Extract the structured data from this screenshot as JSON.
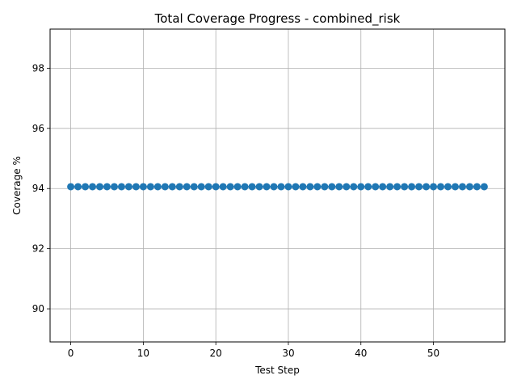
{
  "chart_data": {
    "type": "line",
    "title": "Total Coverage Progress - combined_risk",
    "xlabel": "Test Step",
    "ylabel": "Coverage %",
    "xlim": [
      -2.85,
      59.85
    ],
    "ylim": [
      88.9,
      99.3
    ],
    "xticks": [
      0,
      10,
      20,
      30,
      40,
      50
    ],
    "yticks": [
      90,
      92,
      94,
      96,
      98
    ],
    "grid": true,
    "marker": "circle",
    "color": "#1f77b4",
    "series": [
      {
        "x": [
          0,
          1,
          2,
          3,
          4,
          5,
          6,
          7,
          8,
          9,
          10,
          11,
          12,
          13,
          14,
          15,
          16,
          17,
          18,
          19,
          20,
          21,
          22,
          23,
          24,
          25,
          26,
          27,
          28,
          29,
          30,
          31,
          32,
          33,
          34,
          35,
          36,
          37,
          38,
          39,
          40,
          41,
          42,
          43,
          44,
          45,
          46,
          47,
          48,
          49,
          50,
          51,
          52,
          53,
          54,
          55,
          56,
          57
        ],
        "y": [
          94.06,
          94.06,
          94.06,
          94.06,
          94.06,
          94.06,
          94.06,
          94.06,
          94.06,
          94.06,
          94.06,
          94.06,
          94.06,
          94.06,
          94.06,
          94.06,
          94.06,
          94.06,
          94.06,
          94.06,
          94.06,
          94.06,
          94.06,
          94.06,
          94.06,
          94.06,
          94.06,
          94.06,
          94.06,
          94.06,
          94.06,
          94.06,
          94.06,
          94.06,
          94.06,
          94.06,
          94.06,
          94.06,
          94.06,
          94.06,
          94.06,
          94.06,
          94.06,
          94.06,
          94.06,
          94.06,
          94.06,
          94.06,
          94.06,
          94.06,
          94.06,
          94.06,
          94.06,
          94.06,
          94.06,
          94.06,
          94.06,
          94.06
        ]
      }
    ]
  }
}
